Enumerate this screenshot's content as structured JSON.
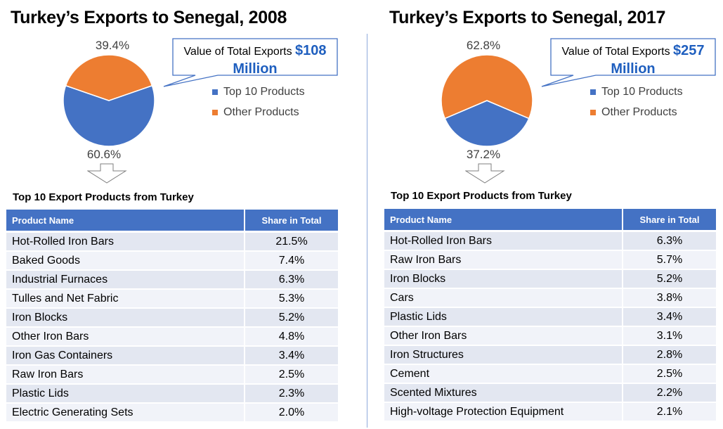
{
  "colors": {
    "top10": "#4472c4",
    "other": "#ed7d31",
    "header": "#4472c4",
    "amount": "#1f5fbf"
  },
  "legend": {
    "top10": "Top 10 Products",
    "other": "Other Products"
  },
  "panels": [
    {
      "title": "Turkey’s Exports to Senegal, 2008",
      "callout_prefix": "Value of Total Exports ",
      "callout_amount": "$108",
      "callout_suffix": "Million",
      "pct_top10": "60.6%",
      "pct_other": "39.4%",
      "table_title": "Top 10 Export Products from Turkey",
      "col_product": "Product Name",
      "col_share": "Share in Total",
      "rows": [
        {
          "name": "Hot-Rolled Iron Bars",
          "share": "21.5%"
        },
        {
          "name": "Baked Goods",
          "share": "7.4%"
        },
        {
          "name": "Industrial Furnaces",
          "share": "6.3%"
        },
        {
          "name": "Tulles and Net Fabric",
          "share": "5.3%"
        },
        {
          "name": "Iron Blocks",
          "share": "5.2%"
        },
        {
          "name": "Other Iron Bars",
          "share": "4.8%"
        },
        {
          "name": "Iron Gas Containers",
          "share": "3.4%"
        },
        {
          "name": "Raw Iron Bars",
          "share": "2.5%"
        },
        {
          "name": "Plastic Lids",
          "share": "2.3%"
        },
        {
          "name": "Electric Generating Sets",
          "share": "2.0%"
        }
      ]
    },
    {
      "title": "Turkey’s Exports to Senegal, 2017",
      "callout_prefix": "Value of Total Exports ",
      "callout_amount": "$257",
      "callout_suffix": "Million",
      "pct_top10": "37.2%",
      "pct_other": "62.8%",
      "table_title": "Top 10 Export Products from Turkey",
      "col_product": "Product Name",
      "col_share": "Share in Total",
      "rows": [
        {
          "name": "Hot-Rolled Iron Bars",
          "share": "6.3%"
        },
        {
          "name": "Raw Iron Bars",
          "share": "5.7%"
        },
        {
          "name": "Iron Blocks",
          "share": "5.2%"
        },
        {
          "name": "Cars",
          "share": "3.8%"
        },
        {
          "name": "Plastic Lids",
          "share": "3.4%"
        },
        {
          "name": "Other Iron Bars",
          "share": "3.1%"
        },
        {
          "name": "Iron Structures",
          "share": "2.8%"
        },
        {
          "name": "Cement",
          "share": "2.5%"
        },
        {
          "name": "Scented Mixtures",
          "share": "2.2%"
        },
        {
          "name": "High-voltage Protection Equipment",
          "share": "2.1%"
        }
      ]
    }
  ],
  "chart_data": [
    {
      "type": "pie",
      "title": "Turkey’s Exports to Senegal, 2008",
      "categories": [
        "Top 10 Products",
        "Other Products"
      ],
      "values": [
        60.6,
        39.4
      ],
      "legend": "right"
    },
    {
      "type": "table",
      "title": "Top 10 Export Products from Turkey",
      "columns": [
        "Product Name",
        "Share in Total"
      ],
      "rows": [
        [
          "Hot-Rolled Iron Bars",
          "21.5%"
        ],
        [
          "Baked Goods",
          "7.4%"
        ],
        [
          "Industrial Furnaces",
          "6.3%"
        ],
        [
          "Tulles and Net Fabric",
          "5.3%"
        ],
        [
          "Iron Blocks",
          "5.2%"
        ],
        [
          "Other Iron Bars",
          "4.8%"
        ],
        [
          "Iron Gas Containers",
          "3.4%"
        ],
        [
          "Raw Iron Bars",
          "2.5%"
        ],
        [
          "Plastic Lids",
          "2.3%"
        ],
        [
          "Electric Generating Sets",
          "2.0%"
        ]
      ]
    },
    {
      "type": "pie",
      "title": "Turkey’s Exports to Senegal, 2017",
      "categories": [
        "Top 10 Products",
        "Other Products"
      ],
      "values": [
        37.2,
        62.8
      ],
      "legend": "right"
    },
    {
      "type": "table",
      "title": "Top 10 Export Products from Turkey",
      "columns": [
        "Product Name",
        "Share in Total"
      ],
      "rows": [
        [
          "Hot-Rolled Iron Bars",
          "6.3%"
        ],
        [
          "Raw Iron Bars",
          "5.7%"
        ],
        [
          "Iron Blocks",
          "5.2%"
        ],
        [
          "Cars",
          "3.8%"
        ],
        [
          "Plastic Lids",
          "3.4%"
        ],
        [
          "Other Iron Bars",
          "3.1%"
        ],
        [
          "Iron Structures",
          "2.8%"
        ],
        [
          "Cement",
          "2.5%"
        ],
        [
          "Scented Mixtures",
          "2.2%"
        ],
        [
          "High-voltage Protection Equipment",
          "2.1%"
        ]
      ]
    }
  ]
}
